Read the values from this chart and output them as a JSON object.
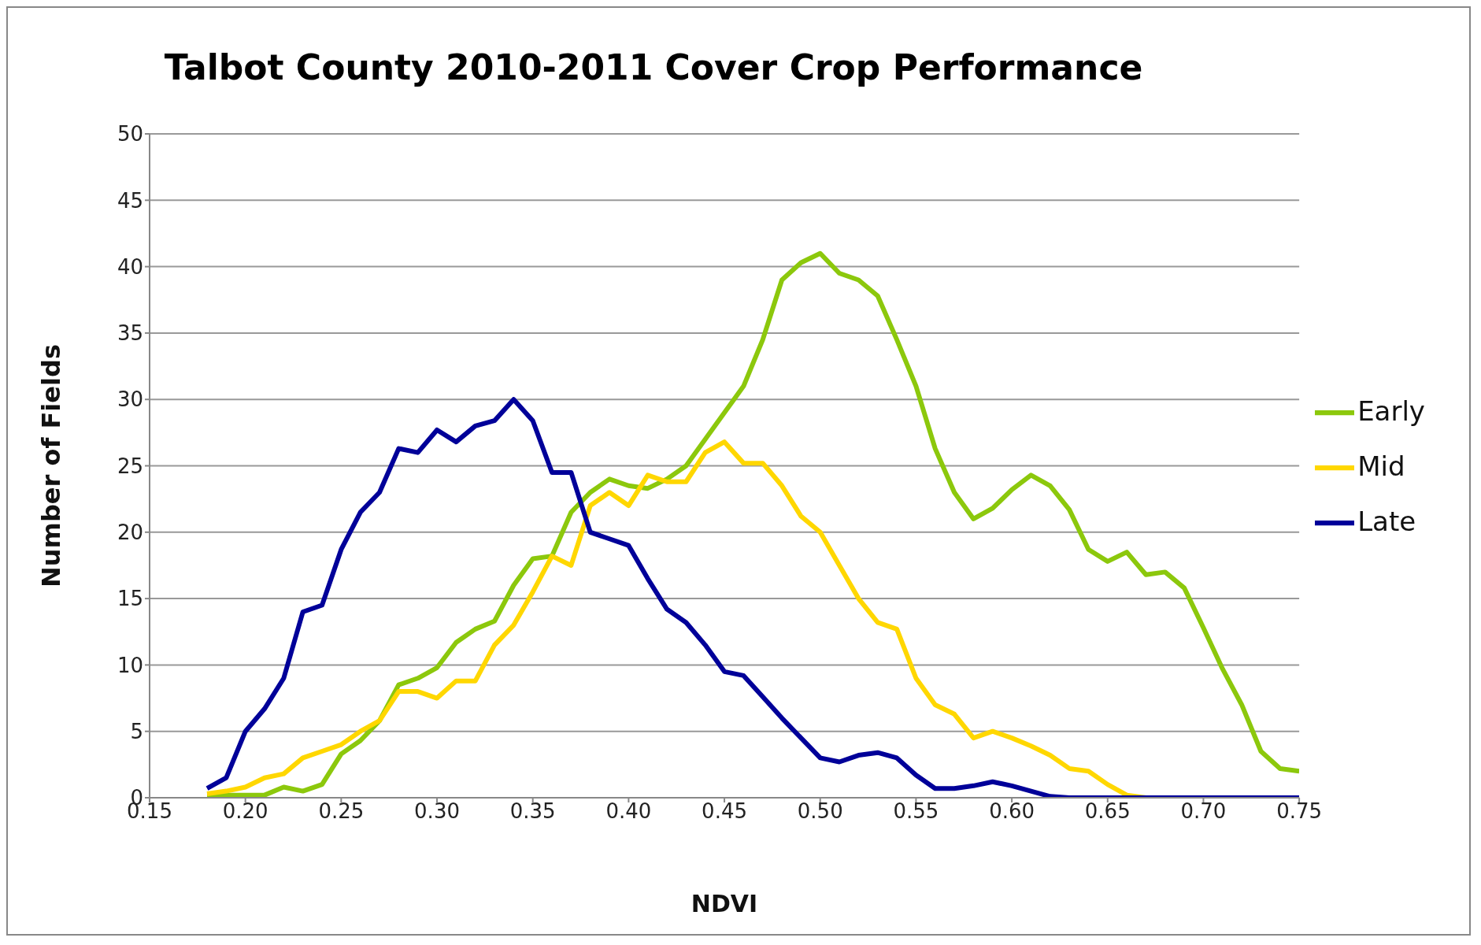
{
  "chart_data": {
    "type": "line",
    "title": "Talbot County 2010-2011 Cover Crop Performance",
    "xlabel": "NDVI",
    "ylabel": "Number of Fields",
    "x": [
      0.18,
      0.19,
      0.2,
      0.21,
      0.22,
      0.23,
      0.24,
      0.25,
      0.26,
      0.27,
      0.28,
      0.29,
      0.3,
      0.31,
      0.32,
      0.33,
      0.34,
      0.35,
      0.36,
      0.37,
      0.38,
      0.39,
      0.4,
      0.41,
      0.42,
      0.43,
      0.44,
      0.45,
      0.46,
      0.47,
      0.48,
      0.49,
      0.5,
      0.51,
      0.52,
      0.53,
      0.54,
      0.55,
      0.56,
      0.57,
      0.58,
      0.59,
      0.6,
      0.61,
      0.62,
      0.63,
      0.64,
      0.65,
      0.66,
      0.67,
      0.68,
      0.69,
      0.7,
      0.71,
      0.72,
      0.73,
      0.74,
      0.75
    ],
    "xlim": [
      0.15,
      0.75
    ],
    "xticks": [
      {
        "value": 0.15,
        "label": "0.15"
      },
      {
        "value": 0.2,
        "label": "0.20"
      },
      {
        "value": 0.25,
        "label": "0.25"
      },
      {
        "value": 0.3,
        "label": "0.30"
      },
      {
        "value": 0.35,
        "label": "0.35"
      },
      {
        "value": 0.4,
        "label": "0.40"
      },
      {
        "value": 0.45,
        "label": "0.45"
      },
      {
        "value": 0.5,
        "label": "0.50"
      },
      {
        "value": 0.55,
        "label": "0.55"
      },
      {
        "value": 0.6,
        "label": "0.60"
      },
      {
        "value": 0.65,
        "label": "0.65"
      },
      {
        "value": 0.7,
        "label": "0.70"
      },
      {
        "value": 0.75,
        "label": "0.75"
      }
    ],
    "ylim": [
      0,
      50
    ],
    "yticks": [
      0,
      5,
      10,
      15,
      20,
      25,
      30,
      35,
      40,
      45,
      50
    ],
    "grid": "y",
    "legend": "right",
    "marker": "none",
    "series": [
      {
        "name": "Early",
        "color": "#8cc80c",
        "values": [
          0.2,
          0.2,
          0.2,
          0.2,
          0.8,
          0.5,
          1,
          3.3,
          4.3,
          5.8,
          8.5,
          9,
          9.8,
          11.7,
          12.7,
          13.3,
          16,
          18,
          18.2,
          21.5,
          23,
          24,
          23.5,
          23.3,
          24,
          25,
          27,
          29,
          31,
          34.5,
          39,
          40.3,
          41,
          39.5,
          39,
          37.8,
          34.5,
          31,
          26.3,
          23,
          21,
          21.8,
          23.2,
          24.3,
          23.5,
          21.7,
          18.7,
          17.8,
          18.5,
          16.8,
          17,
          15.8,
          12.8,
          9.7,
          7,
          3.5,
          2.2,
          2
        ]
      },
      {
        "name": "Mid",
        "color": "#ffd700",
        "values": [
          0.3,
          0.5,
          0.8,
          1.5,
          1.8,
          3,
          3.5,
          4,
          5,
          5.8,
          8,
          8,
          7.5,
          8.8,
          8.8,
          11.5,
          13,
          15.5,
          18.2,
          17.5,
          22,
          23,
          22,
          24.3,
          23.8,
          23.8,
          26,
          26.8,
          25.2,
          25.2,
          23.5,
          21.2,
          20,
          17.5,
          15,
          13.2,
          12.7,
          9,
          7,
          6.3,
          4.5,
          5,
          4.5,
          3.9,
          3.2,
          2.2,
          2,
          1,
          0.2,
          0,
          0,
          null,
          null,
          null,
          null,
          null,
          null,
          null
        ]
      },
      {
        "name": "Late",
        "color": "#000099",
        "values": [
          0.7,
          1.5,
          5,
          6.7,
          9,
          14,
          14.5,
          18.7,
          21.5,
          23,
          26.3,
          26,
          27.7,
          26.8,
          28,
          28.4,
          30,
          28.4,
          24.5,
          24.5,
          20,
          19.5,
          19,
          16.5,
          14.2,
          13.2,
          11.5,
          9.5,
          9.2,
          7.6,
          6,
          4.5,
          3,
          2.7,
          3.2,
          3.4,
          3,
          1.7,
          0.7,
          0.7,
          0.9,
          1.2,
          0.9,
          0.5,
          0.1,
          0,
          0,
          0,
          0,
          0,
          0,
          0,
          0,
          0,
          0,
          0,
          0,
          0
        ]
      }
    ]
  }
}
